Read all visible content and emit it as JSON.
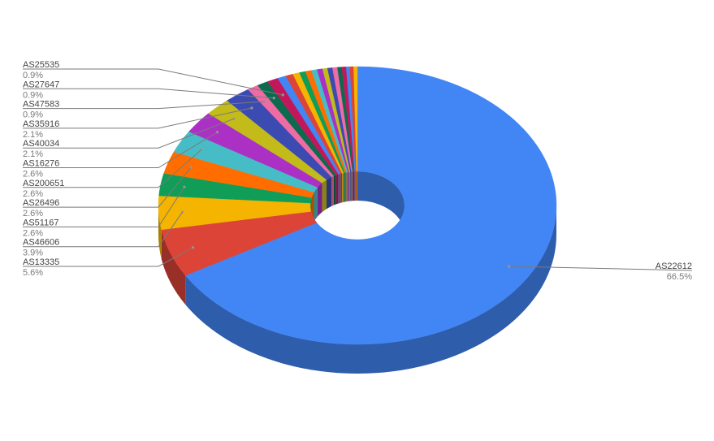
{
  "chart_data": {
    "type": "pie",
    "style": "3d-donut",
    "legend": "labeled-callouts",
    "slices": [
      {
        "name": "AS22612",
        "label": "66.5%",
        "value": 66.5,
        "color": "#4285f4"
      },
      {
        "name": "AS13335",
        "label": "5.6%",
        "value": 5.6,
        "color": "#db4437"
      },
      {
        "name": "AS46606",
        "label": "3.9%",
        "value": 3.9,
        "color": "#f4b400"
      },
      {
        "name": "AS51167",
        "label": "2.6%",
        "value": 2.6,
        "color": "#0f9d58"
      },
      {
        "name": "AS26496",
        "label": "2.6%",
        "value": 2.6,
        "color": "#ff6d01"
      },
      {
        "name": "AS200651",
        "label": "2.6%",
        "value": 2.6,
        "color": "#46bdc6"
      },
      {
        "name": "AS16276",
        "label": "2.6%",
        "value": 2.6,
        "color": "#ab30c4"
      },
      {
        "name": "AS40034",
        "label": "2.1%",
        "value": 2.1,
        "color": "#c2bb19"
      },
      {
        "name": "AS35916",
        "label": "2.1%",
        "value": 2.1,
        "color": "#3c4bb1"
      },
      {
        "name": "AS47583",
        "label": "0.9%",
        "value": 0.9,
        "color": "#f06ba3"
      },
      {
        "name": "AS27647",
        "label": "0.9%",
        "value": 0.9,
        "color": "#0c6b4f"
      },
      {
        "name": "AS25535",
        "label": "0.9%",
        "value": 0.9,
        "color": "#c2185b"
      },
      {
        "name": "",
        "label": "",
        "value": 0.7,
        "color": "#4285f4"
      },
      {
        "name": "",
        "label": "",
        "value": 0.6,
        "color": "#db4437"
      },
      {
        "name": "",
        "label": "",
        "value": 0.55,
        "color": "#f4b400"
      },
      {
        "name": "",
        "label": "",
        "value": 0.5,
        "color": "#0f9d58"
      },
      {
        "name": "",
        "label": "",
        "value": 0.5,
        "color": "#ff6d01"
      },
      {
        "name": "",
        "label": "",
        "value": 0.45,
        "color": "#46bdc6"
      },
      {
        "name": "",
        "label": "",
        "value": 0.45,
        "color": "#ab30c4"
      },
      {
        "name": "",
        "label": "",
        "value": 0.4,
        "color": "#c2bb19"
      },
      {
        "name": "",
        "label": "",
        "value": 0.4,
        "color": "#3c4bb1"
      },
      {
        "name": "",
        "label": "",
        "value": 0.4,
        "color": "#f06ba3"
      },
      {
        "name": "",
        "label": "",
        "value": 0.35,
        "color": "#0c6b4f"
      },
      {
        "name": "",
        "label": "",
        "value": 0.35,
        "color": "#c2185b"
      },
      {
        "name": "",
        "label": "",
        "value": 0.3,
        "color": "#4285f4"
      },
      {
        "name": "",
        "label": "",
        "value": 0.3,
        "color": "#db4437"
      },
      {
        "name": "",
        "label": "",
        "value": 0.3,
        "color": "#f4b400"
      }
    ]
  }
}
